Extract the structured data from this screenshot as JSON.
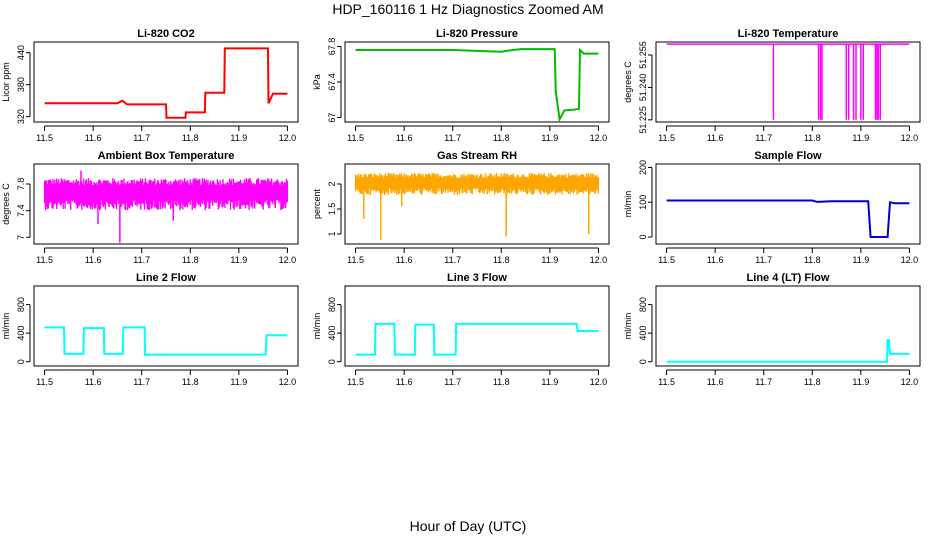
{
  "figure": {
    "title": "HDP_160116  1 Hz Diagnostics Zoomed AM",
    "xlabel": "Hour of Day (UTC)"
  },
  "chart_data": [
    {
      "type": "line",
      "title": "Li-820 CO2",
      "ylabel": "Licor ppm",
      "color": "#ff0000",
      "xlim": [
        11.5,
        12.0
      ],
      "ylim": [
        310,
        460
      ],
      "xticks": [
        "11.5",
        "11.6",
        "11.7",
        "11.8",
        "11.9",
        "12.0"
      ],
      "yticks": [
        320,
        380,
        440
      ],
      "series": [
        {
          "x": [
            11.5,
            11.65,
            11.66,
            11.67,
            11.75,
            11.751,
            11.79,
            11.791,
            11.83,
            11.831,
            11.87,
            11.871,
            11.96,
            11.961,
            11.97,
            12.0
          ],
          "y": [
            345,
            345,
            350,
            343,
            343,
            318,
            318,
            328,
            328,
            365,
            365,
            448,
            448,
            345,
            363,
            363
          ]
        }
      ]
    },
    {
      "type": "line",
      "title": "Li-820 Pressure",
      "ylabel": "kPa",
      "color": "#00bb00",
      "xlim": [
        11.5,
        12.0
      ],
      "ylim": [
        66.95,
        67.85
      ],
      "xticks": [
        "11.5",
        "11.6",
        "11.7",
        "11.8",
        "11.9",
        "12.0"
      ],
      "yticks": [
        67.0,
        67.4,
        67.8
      ],
      "series": [
        {
          "x": [
            11.5,
            11.7,
            11.8,
            11.81,
            11.84,
            11.91,
            11.912,
            11.92,
            11.93,
            11.95,
            11.96,
            11.962,
            11.97,
            12.0
          ],
          "y": [
            67.76,
            67.76,
            67.74,
            67.75,
            67.77,
            67.77,
            67.3,
            66.98,
            67.08,
            67.09,
            67.1,
            67.76,
            67.72,
            67.72
          ]
        }
      ]
    },
    {
      "type": "line",
      "title": "Li-820 Temperature",
      "ylabel": "degrees C",
      "color": "#ff00ff",
      "xlim": [
        11.5,
        12.0
      ],
      "ylim": [
        51.224,
        51.261
      ],
      "xticks": [
        "11.5",
        "11.6",
        "11.7",
        "11.8",
        "11.9",
        "12.0"
      ],
      "yticks": [
        "51.225",
        "51.240",
        "51.255"
      ],
      "baseline": 51.26,
      "dips": [
        11.72,
        11.813,
        11.817,
        11.82,
        11.87,
        11.875,
        11.885,
        11.89,
        11.9,
        11.905,
        11.93,
        11.933,
        11.936,
        11.94
      ],
      "dip_to": 51.225
    },
    {
      "type": "noise",
      "title": "Ambient Box Temperature",
      "ylabel": "degrees C",
      "color": "#ff00ff",
      "xlim": [
        11.5,
        12.0
      ],
      "ylim": [
        6.9,
        8.1
      ],
      "xticks": [
        "11.5",
        "11.6",
        "11.7",
        "11.8",
        "11.9",
        "12.0"
      ],
      "yticks": [
        7.0,
        7.4,
        7.8
      ],
      "center": 7.67,
      "spread": 0.22,
      "spikes": [
        {
          "x": 11.655,
          "y": 6.92
        },
        {
          "x": 11.61,
          "y": 7.2
        },
        {
          "x": 11.765,
          "y": 7.25
        },
        {
          "x": 11.575,
          "y": 8.0
        }
      ]
    },
    {
      "type": "noise",
      "title": "Gas Stream RH",
      "ylabel": "percent",
      "color": "#ffa500",
      "xlim": [
        11.5,
        12.0
      ],
      "ylim": [
        0.8,
        2.4
      ],
      "xticks": [
        "11.5",
        "11.6",
        "11.7",
        "11.8",
        "11.9",
        "12.0"
      ],
      "yticks": [
        1.0,
        1.5,
        2.0
      ],
      "center": 2.02,
      "spread": 0.2,
      "spikes": [
        {
          "x": 11.552,
          "y": 0.88
        },
        {
          "x": 11.517,
          "y": 1.3
        },
        {
          "x": 11.81,
          "y": 0.95
        },
        {
          "x": 11.98,
          "y": 1.0
        },
        {
          "x": 11.595,
          "y": 1.55
        }
      ]
    },
    {
      "type": "line",
      "title": "Sample Flow",
      "ylabel": "ml/min",
      "color": "#0000cc",
      "xlim": [
        11.5,
        12.0
      ],
      "ylim": [
        -20,
        210
      ],
      "xticks": [
        "11.5",
        "11.6",
        "11.7",
        "11.8",
        "11.9",
        "12.0"
      ],
      "yticks": [
        0,
        100,
        200
      ],
      "series": [
        {
          "x": [
            11.5,
            11.8,
            11.81,
            11.84,
            11.915,
            11.92,
            11.955,
            11.96,
            11.97,
            12.0
          ],
          "y": [
            105,
            105,
            101,
            103,
            103,
            0,
            0,
            100,
            97,
            97
          ]
        }
      ]
    },
    {
      "type": "line",
      "title": "Line 2 Flow",
      "ylabel": "ml/min",
      "color": "#00ffff",
      "xlim": [
        11.5,
        12.0
      ],
      "ylim": [
        -60,
        1060
      ],
      "xticks": [
        "11.5",
        "11.6",
        "11.7",
        "11.8",
        "11.9",
        "12.0"
      ],
      "yticks": [
        0,
        400,
        800
      ],
      "series": [
        {
          "x": [
            11.5,
            11.54,
            11.541,
            11.58,
            11.581,
            11.622,
            11.623,
            11.661,
            11.662,
            11.706,
            11.707,
            11.955,
            11.957,
            12.0
          ],
          "y": [
            480,
            480,
            110,
            110,
            470,
            470,
            110,
            110,
            480,
            480,
            100,
            100,
            370,
            370
          ]
        }
      ]
    },
    {
      "type": "line",
      "title": "Line 3 Flow",
      "ylabel": "ml/min",
      "color": "#00ffff",
      "xlim": [
        11.5,
        12.0
      ],
      "ylim": [
        -60,
        1060
      ],
      "xticks": [
        "11.5",
        "11.6",
        "11.7",
        "11.8",
        "11.9",
        "12.0"
      ],
      "yticks": [
        0,
        400,
        800
      ],
      "series": [
        {
          "x": [
            11.5,
            11.54,
            11.541,
            11.58,
            11.581,
            11.622,
            11.623,
            11.661,
            11.662,
            11.706,
            11.707,
            11.955,
            11.957,
            12.0
          ],
          "y": [
            100,
            100,
            530,
            530,
            100,
            100,
            520,
            520,
            100,
            100,
            530,
            530,
            430,
            430
          ]
        }
      ]
    },
    {
      "type": "line",
      "title": "Line 4 (LT) Flow",
      "ylabel": "ml/min",
      "color": "#00ffff",
      "xlim": [
        11.5,
        12.0
      ],
      "ylim": [
        -60,
        1060
      ],
      "xticks": [
        "11.5",
        "11.6",
        "11.7",
        "11.8",
        "11.9",
        "12.0"
      ],
      "yticks": [
        0,
        400,
        800
      ],
      "series": [
        {
          "x": [
            11.5,
            11.954,
            11.955,
            11.958,
            11.96,
            12.0
          ],
          "y": [
            0,
            0,
            300,
            300,
            110,
            110
          ]
        }
      ]
    }
  ]
}
